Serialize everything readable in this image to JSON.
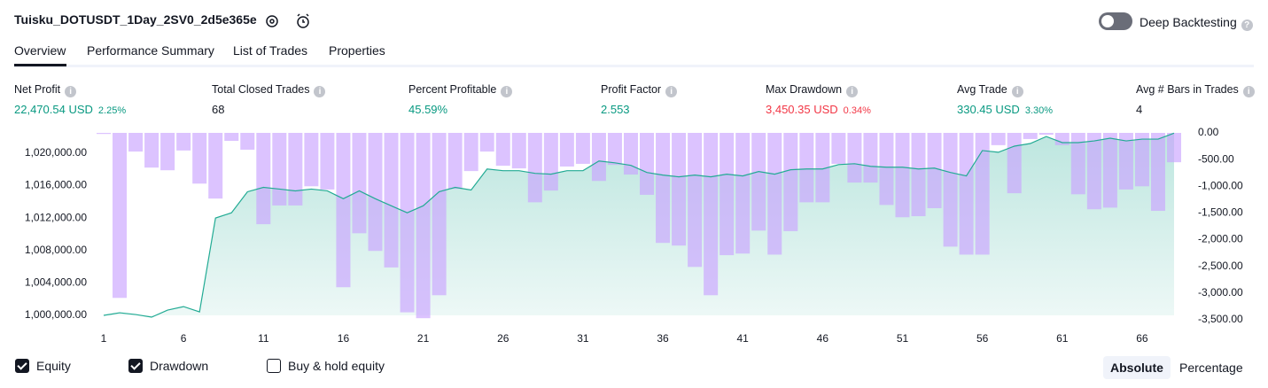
{
  "header": {
    "title": "Tuisku_DOTUSDT_1Day_2SV0_2d5e365e",
    "toggle_label": "Deep Backtesting",
    "toggle_on": false
  },
  "tabs": [
    "Overview",
    "Performance Summary",
    "List of Trades",
    "Properties"
  ],
  "active_tab": 0,
  "metrics": [
    {
      "label": "Net Profit",
      "value": "22,470.54 USD",
      "change": "2.25%",
      "tone": "positive"
    },
    {
      "label": "Total Closed Trades",
      "value": "68",
      "tone": "neutral"
    },
    {
      "label": "Percent Profitable",
      "value": "45.59%",
      "tone": "positive"
    },
    {
      "label": "Profit Factor",
      "value": "2.553",
      "tone": "positive"
    },
    {
      "label": "Max Drawdown",
      "value": "3,450.35 USD",
      "change": "0.34%",
      "tone": "negative"
    },
    {
      "label": "Avg Trade",
      "value": "330.45 USD",
      "change": "3.30%",
      "tone": "positive"
    },
    {
      "label": "Avg # Bars in Trades",
      "value": "4",
      "tone": "neutral"
    }
  ],
  "chart_data": {
    "type": "combo",
    "x": [
      1,
      2,
      3,
      4,
      5,
      6,
      7,
      8,
      9,
      10,
      11,
      12,
      13,
      14,
      15,
      16,
      17,
      18,
      19,
      20,
      21,
      22,
      23,
      24,
      25,
      26,
      27,
      28,
      29,
      30,
      31,
      32,
      33,
      34,
      35,
      36,
      37,
      38,
      39,
      40,
      41,
      42,
      43,
      44,
      45,
      46,
      47,
      48,
      49,
      50,
      51,
      52,
      53,
      54,
      55,
      56,
      57,
      58,
      59,
      60,
      61,
      62,
      63,
      64,
      65,
      66,
      67,
      68
    ],
    "xlim": [
      1,
      68
    ],
    "xticks": [
      1,
      6,
      11,
      16,
      21,
      26,
      31,
      36,
      41,
      46,
      51,
      56,
      61,
      66
    ],
    "ylim": [
      1000000,
      1022500
    ],
    "yticks": [
      {
        "value": 1000000,
        "label": "1,000,000.00"
      },
      {
        "value": 1004000,
        "label": "1,004,000.00"
      },
      {
        "value": 1008000,
        "label": "1,008,000.00"
      },
      {
        "value": 1012000,
        "label": "1,012,000.00"
      },
      {
        "value": 1016000,
        "label": "1,016,000.00"
      },
      {
        "value": 1020000,
        "label": "1,020,000.00"
      }
    ],
    "y2lim": [
      -3500,
      0
    ],
    "y2ticks": [
      {
        "value": 0,
        "label": "0.00"
      },
      {
        "value": -500,
        "label": "-500.00"
      },
      {
        "value": -1000,
        "label": "-1,000.00"
      },
      {
        "value": -1500,
        "label": "-1,500.00"
      },
      {
        "value": -2000,
        "label": "-2,000.00"
      },
      {
        "value": -2500,
        "label": "-2,500.00"
      },
      {
        "value": -3000,
        "label": "-3,000.00"
      },
      {
        "value": -3500,
        "label": "-3,500.00"
      }
    ],
    "series": [
      {
        "name": "Equity",
        "type": "area",
        "color": "#22ab94",
        "checked": true,
        "values": [
          1000000,
          1000320,
          1000100,
          999780,
          1000650,
          1001080,
          1000430,
          1012000,
          1012650,
          1015240,
          1015780,
          1015570,
          1015350,
          1015570,
          1015350,
          1014380,
          1015350,
          1014380,
          1013510,
          1012650,
          1013510,
          1015240,
          1015780,
          1015460,
          1018050,
          1017840,
          1017840,
          1017510,
          1017410,
          1017840,
          1017840,
          1019030,
          1018810,
          1018490,
          1017620,
          1017300,
          1017080,
          1017300,
          1017080,
          1017410,
          1017190,
          1017730,
          1017410,
          1017950,
          1018050,
          1018050,
          1018590,
          1018700,
          1018380,
          1018270,
          1018270,
          1018050,
          1018160,
          1017620,
          1017190,
          1020320,
          1020110,
          1020860,
          1021190,
          1022050,
          1021300,
          1021300,
          1021510,
          1021840,
          1021510,
          1021730,
          1021730,
          1022470
        ]
      },
      {
        "name": "Drawdown",
        "type": "bar",
        "axis": "y2",
        "color": "#c9a3ff",
        "checked": true,
        "values": [
          -20,
          -3090,
          -350,
          -650,
          -700,
          -330,
          -950,
          -1230,
          -150,
          -315,
          -1710,
          -1360,
          -1360,
          -1000,
          -1060,
          -2890,
          -1880,
          -2210,
          -2520,
          -3360,
          -3470,
          -3040,
          -1050,
          -715,
          -350,
          -615,
          -665,
          -1300,
          -1080,
          -630,
          -580,
          -900,
          -600,
          -780,
          -1160,
          -2060,
          -2110,
          -2510,
          -3040,
          -2290,
          -2260,
          -1830,
          -2280,
          -1840,
          -1300,
          -1300,
          -580,
          -930,
          -930,
          -1350,
          -1580,
          -1560,
          -1410,
          -2130,
          -2280,
          -2280,
          -230,
          -1130,
          -115,
          -35,
          -230,
          -1150,
          -1430,
          -1400,
          -1060,
          -1000,
          -1460,
          -550
        ]
      }
    ],
    "toggles": [
      {
        "name": "Buy & hold equity",
        "checked": false
      }
    ]
  },
  "view_buttons": [
    "Absolute",
    "Percentage"
  ],
  "active_view": 0
}
